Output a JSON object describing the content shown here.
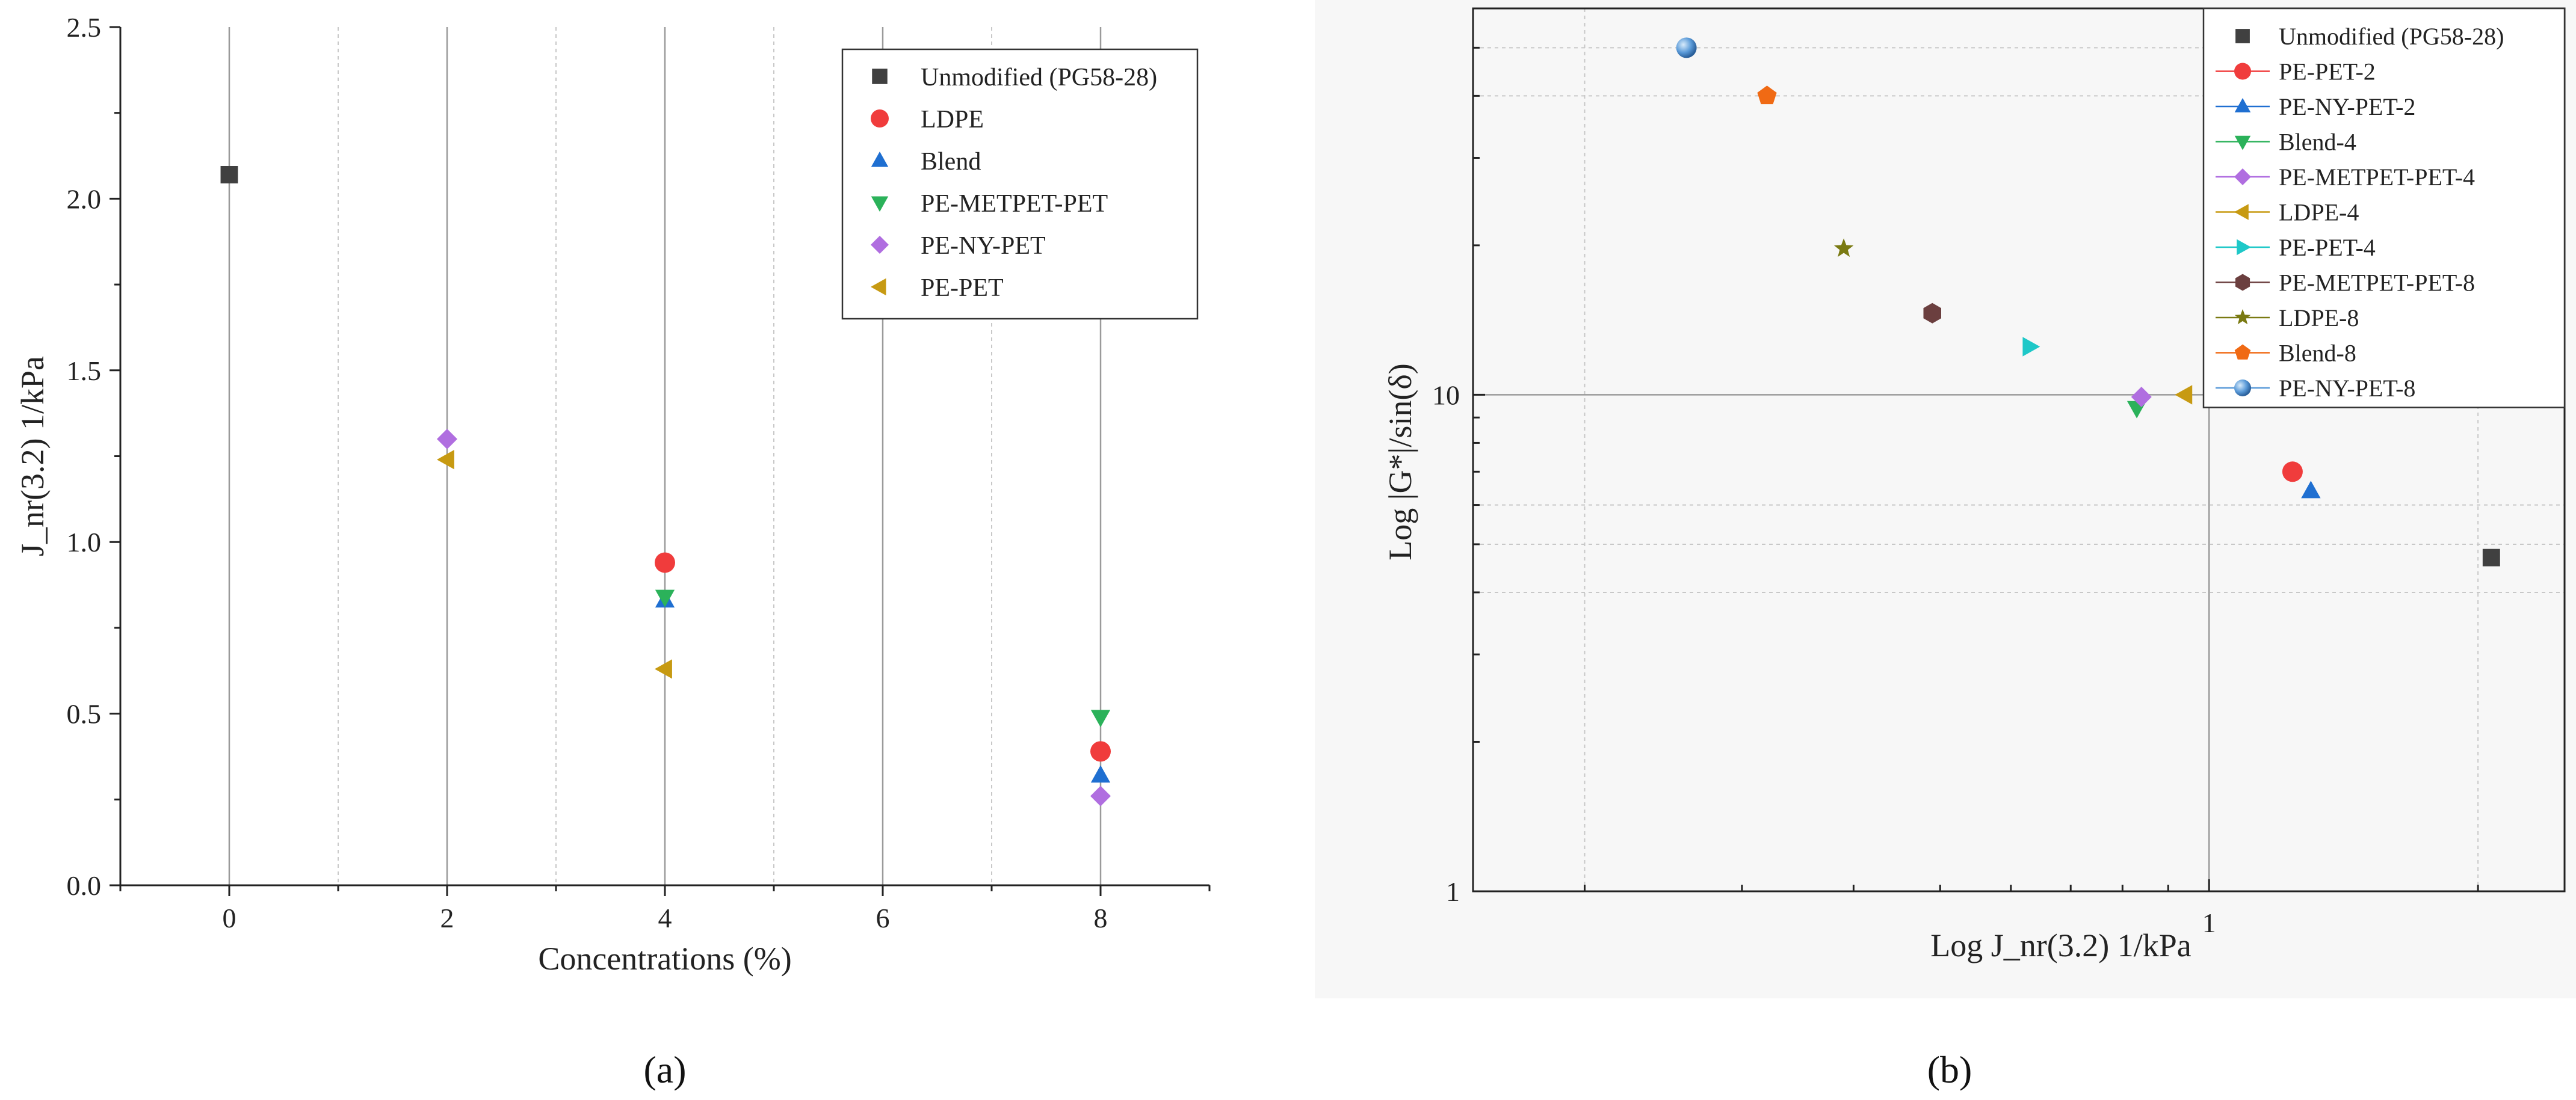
{
  "chart_data": [
    {
      "type": "scatter",
      "panel_label": "a",
      "xlabel": "Concentrations (%)",
      "ylabel": "J_nr(3.2) 1/kPa",
      "xlim": [
        -1,
        9
      ],
      "ylim": [
        0,
        2.5
      ],
      "xticks": [
        "0",
        "2",
        "4",
        "6",
        "8"
      ],
      "yticks": [
        "0.0",
        "0.5",
        "1.0",
        "1.5",
        "2.0",
        "2.5"
      ],
      "legend_position": "top-right",
      "series": [
        {
          "name": "Unmodified (PG58-28)",
          "marker": "square",
          "color": "#404040",
          "points": [
            {
              "x": 0,
              "y": 2.07
            }
          ]
        },
        {
          "name": "LDPE",
          "marker": "circle",
          "color": "#f03c3c",
          "points": [
            {
              "x": 4,
              "y": 0.94
            },
            {
              "x": 8,
              "y": 0.39
            }
          ]
        },
        {
          "name": "Blend",
          "marker": "triangle-up",
          "color": "#1f6fd1",
          "points": [
            {
              "x": 4,
              "y": 0.83
            },
            {
              "x": 8,
              "y": 0.32
            }
          ]
        },
        {
          "name": "PE-METPET-PET",
          "marker": "triangle-down",
          "color": "#2bb25a",
          "points": [
            {
              "x": 4,
              "y": 0.84
            },
            {
              "x": 8,
              "y": 0.49
            }
          ]
        },
        {
          "name": "PE-NY-PET",
          "marker": "diamond",
          "color": "#b06ee0",
          "points": [
            {
              "x": 2,
              "y": 1.3
            },
            {
              "x": 8,
              "y": 0.26
            }
          ]
        },
        {
          "name": "PE-PET",
          "marker": "triangle-left",
          "color": "#c79a12",
          "points": [
            {
              "x": 2,
              "y": 1.24
            },
            {
              "x": 4,
              "y": 0.63
            }
          ]
        }
      ]
    },
    {
      "type": "scatter",
      "panel_label": "b",
      "xlabel": "Log J_nr(3.2) 1/kPa",
      "ylabel": "Log |G*|/sin(δ)",
      "xscale": "log",
      "yscale": "log",
      "xlim": [
        0.15,
        2.5
      ],
      "ylim": [
        1,
        60
      ],
      "xticks": [
        "1"
      ],
      "yticks": [
        "1",
        "10"
      ],
      "legend_position": "top-right",
      "series": [
        {
          "name": "Unmodified (PG58-28)",
          "marker": "square",
          "color": "#404040",
          "points": [
            {
              "x": 2.07,
              "y": 4.7
            }
          ]
        },
        {
          "name": "PE-PET-2",
          "marker": "circle",
          "color": "#f03c3c",
          "points": [
            {
              "x": 1.24,
              "y": 7.0
            }
          ]
        },
        {
          "name": "PE-NY-PET-2",
          "marker": "triangle-up",
          "color": "#1f6fd1",
          "points": [
            {
              "x": 1.3,
              "y": 6.4
            }
          ]
        },
        {
          "name": "Blend-4",
          "marker": "triangle-down",
          "color": "#2bb25a",
          "points": [
            {
              "x": 0.83,
              "y": 9.4
            }
          ]
        },
        {
          "name": "PE-METPET-PET-4",
          "marker": "diamond",
          "color": "#b06ee0",
          "points": [
            {
              "x": 0.84,
              "y": 9.9
            }
          ]
        },
        {
          "name": "LDPE-4",
          "marker": "triangle-left",
          "color": "#c79a12",
          "points": [
            {
              "x": 0.94,
              "y": 10.0
            }
          ]
        },
        {
          "name": "PE-PET-4",
          "marker": "triangle-right",
          "color": "#1ec8c8",
          "points": [
            {
              "x": 0.63,
              "y": 12.5
            }
          ]
        },
        {
          "name": "PE-METPET-PET-8",
          "marker": "hexagon",
          "color": "#6b3f3f",
          "points": [
            {
              "x": 0.49,
              "y": 14.6
            }
          ]
        },
        {
          "name": "LDPE-8",
          "marker": "star",
          "color": "#7a7a12",
          "points": [
            {
              "x": 0.39,
              "y": 19.7
            }
          ]
        },
        {
          "name": "Blend-8",
          "marker": "pentagon",
          "color": "#f06a14",
          "points": [
            {
              "x": 0.32,
              "y": 40.0
            }
          ]
        },
        {
          "name": "PE-NY-PET-8",
          "marker": "sphere",
          "color": "#5a9ad8",
          "points": [
            {
              "x": 0.26,
              "y": 50.0
            }
          ]
        }
      ]
    }
  ]
}
